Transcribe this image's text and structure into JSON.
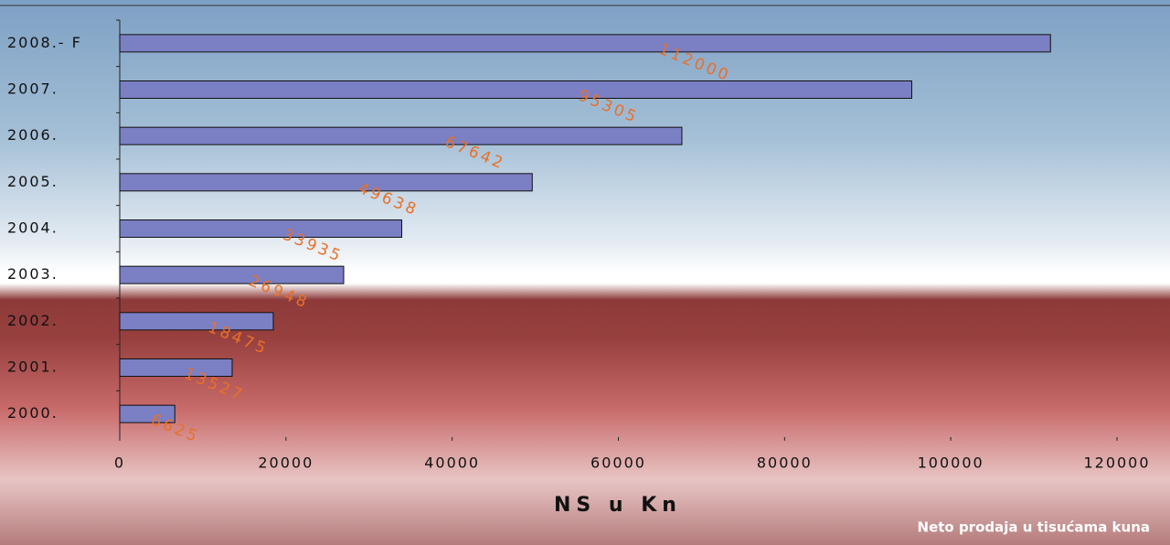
{
  "chart_data": {
    "type": "bar",
    "orientation": "horizontal",
    "categories": [
      "2008.- F",
      "2007.",
      "2006.",
      "2005.",
      "2004.",
      "2003.",
      "2002.",
      "2001.",
      "2000."
    ],
    "values": [
      112000,
      95305,
      67642,
      49638,
      33935,
      26948,
      18475,
      13527,
      6625
    ],
    "color": "#7b7fc4",
    "xlim": [
      0,
      120000
    ],
    "xticks": [
      0,
      20000,
      40000,
      60000,
      80000,
      100000,
      120000
    ],
    "xlabel": "NS u Kn",
    "caption": "Neto prodaja u tisućama kuna"
  }
}
